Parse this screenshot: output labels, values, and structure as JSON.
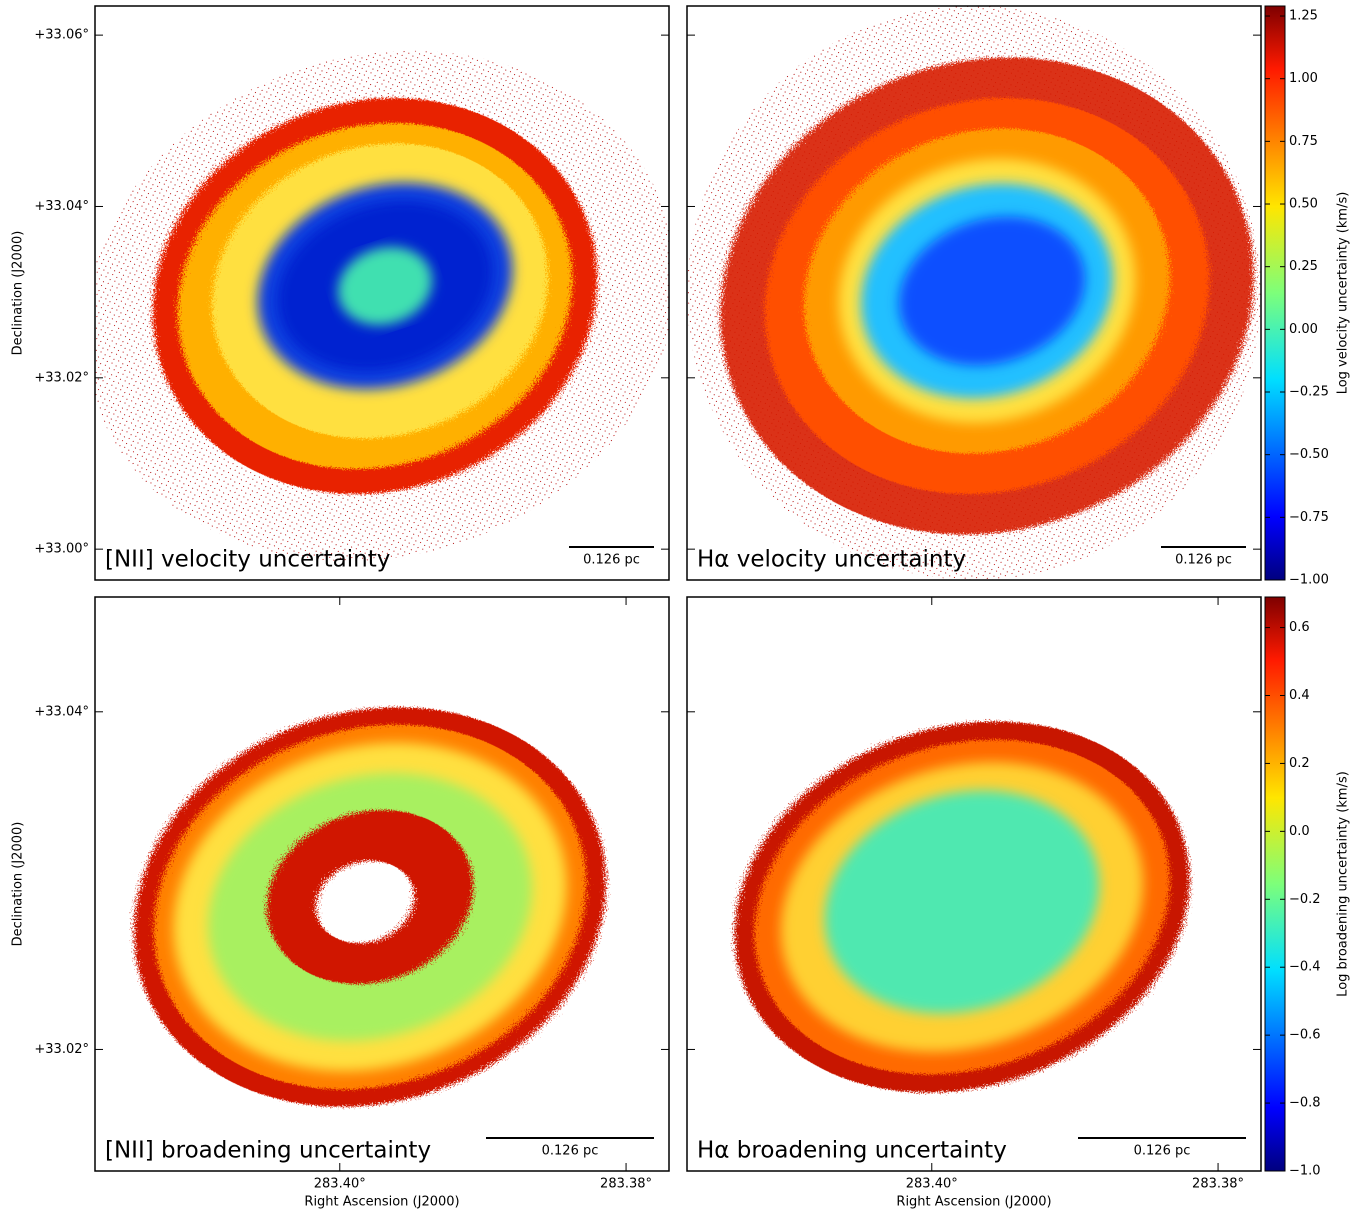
{
  "chart_data": [
    {
      "type": "image",
      "panels": [
        "[NII] velocity uncertainty",
        "Hα velocity uncertainty"
      ],
      "scale_bar": "0.126 pc",
      "ylabel": "Declination (J2000)",
      "ylim": [
        32.9964,
        33.0634
      ],
      "yticks": [
        {
          "value": 33.06,
          "label": "+33.06°"
        },
        {
          "value": 33.04,
          "label": "+33.04°"
        },
        {
          "value": 33.02,
          "label": "+33.02°"
        },
        {
          "value": 33.0,
          "label": "+33.00°"
        }
      ],
      "colorbar": {
        "label": "Log velocity uncertainty (km/s)",
        "lim": [
          -1,
          1.29
        ],
        "ticks": [
          {
            "value": 1.25,
            "label": "1.25"
          },
          {
            "value": 1,
            "label": "1.00"
          },
          {
            "value": 0.75,
            "label": "0.75"
          },
          {
            "value": 0.5,
            "label": "0.50"
          },
          {
            "value": 0.25,
            "label": "0.25"
          },
          {
            "value": 0,
            "label": "0.00"
          },
          {
            "value": -0.25,
            "label": "−0.25"
          },
          {
            "value": -0.5,
            "label": "−0.50"
          },
          {
            "value": -0.75,
            "label": "−0.75"
          },
          {
            "value": -1,
            "label": "−1.00"
          }
        ]
      }
    },
    {
      "type": "image",
      "panels": [
        "[NII] broadening uncertainty",
        "Hα broadening uncertainty"
      ],
      "scale_bar": "0.126 pc",
      "ylabel": "Declination (J2000)",
      "xlabel": "Right Ascension (J2000)",
      "ylim": [
        33.0128,
        33.0468
      ],
      "yticks": [
        {
          "value": 33.04,
          "label": "+33.04°"
        },
        {
          "value": 33.02,
          "label": "+33.02°"
        }
      ],
      "xlim": [
        283.4171,
        283.377
      ],
      "xticks": [
        {
          "value": 283.4,
          "label": "283.40°"
        },
        {
          "value": 283.38,
          "label": "283.38°"
        }
      ],
      "colorbar": {
        "label": "Log broadening uncertainty (km/s)",
        "lim": [
          -1,
          0.69
        ],
        "ticks": [
          0.6,
          0.4,
          0.2,
          {
            "value": 0,
            "label": "0.0"
          },
          {
            "value": -0.2,
            "label": "−0.2"
          },
          {
            "value": -0.4,
            "label": "−0.4"
          },
          {
            "value": -0.6,
            "label": "−0.6"
          },
          {
            "value": -0.8,
            "label": "−0.8"
          },
          {
            "value": -1,
            "label": "−1.0"
          }
        ]
      }
    }
  ]
}
